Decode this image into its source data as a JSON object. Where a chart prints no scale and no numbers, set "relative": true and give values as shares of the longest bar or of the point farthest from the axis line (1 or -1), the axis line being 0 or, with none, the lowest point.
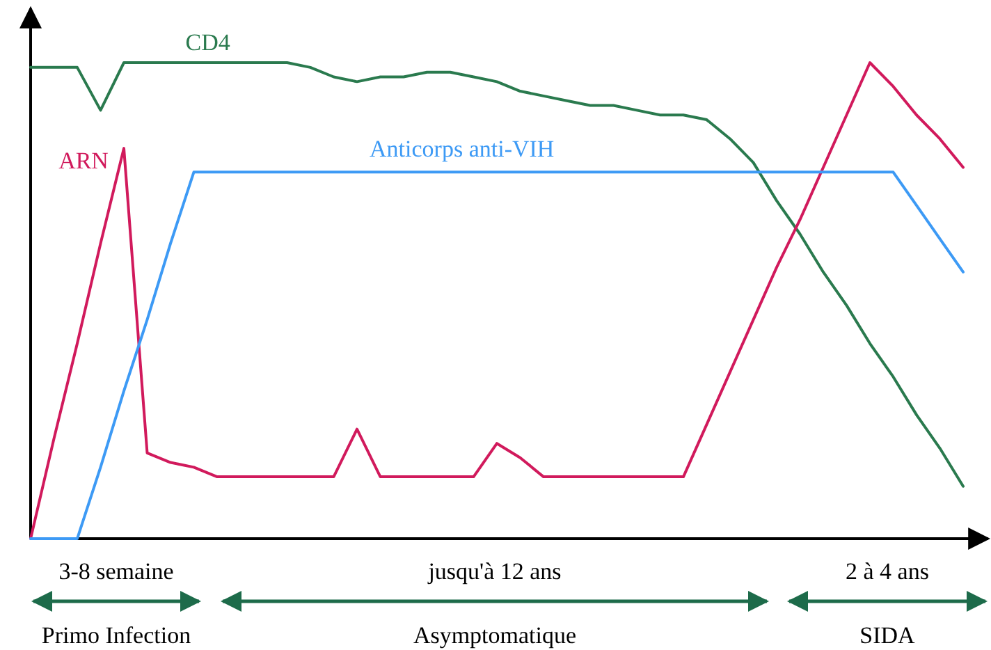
{
  "chart_data": {
    "type": "line",
    "relative": true,
    "categories": [
      null,
      null,
      null,
      null,
      null,
      null,
      null,
      null,
      null,
      null,
      null,
      null,
      null,
      null,
      null,
      null,
      null,
      null,
      null,
      null,
      null,
      null,
      null,
      null,
      null,
      null,
      null,
      null,
      null,
      null,
      null,
      null,
      null,
      null,
      null,
      null,
      null,
      null,
      null,
      null,
      null
    ],
    "series": [
      {
        "name": "CD4",
        "color": "#2a7a4e",
        "values": [
          0.99,
          0.99,
          0.99,
          0.9,
          1.0,
          1.0,
          1.0,
          1.0,
          1.0,
          1.0,
          1.0,
          1.0,
          0.99,
          0.97,
          0.96,
          0.97,
          0.97,
          0.98,
          0.98,
          0.97,
          0.96,
          0.94,
          0.93,
          0.92,
          0.91,
          0.91,
          0.9,
          0.89,
          0.89,
          0.88,
          0.84,
          0.79,
          0.71,
          0.64,
          0.56,
          0.49,
          0.41,
          0.34,
          0.26,
          0.19,
          0.11
        ]
      },
      {
        "name": "ARN",
        "color": "#d11a5c",
        "values": [
          0,
          0.21,
          0.41,
          0.62,
          0.82,
          0.18,
          0.16,
          0.15,
          0.13,
          0.13,
          0.13,
          0.13,
          0.13,
          0.13,
          0.23,
          0.13,
          0.13,
          0.13,
          0.13,
          0.13,
          0.2,
          0.17,
          0.13,
          0.13,
          0.13,
          0.13,
          0.13,
          0.13,
          0.13,
          0.24,
          0.35,
          0.46,
          0.57,
          0.67,
          0.78,
          0.89,
          1.0,
          0.95,
          0.89,
          0.84,
          0.78
        ]
      },
      {
        "name": "Anticorps anti-VIH",
        "color": "#3d9af5",
        "values": [
          0,
          0,
          0,
          0.15,
          0.31,
          0.46,
          0.62,
          0.77,
          0.77,
          0.77,
          0.77,
          0.77,
          0.77,
          0.77,
          0.77,
          0.77,
          0.77,
          0.77,
          0.77,
          0.77,
          0.77,
          0.77,
          0.77,
          0.77,
          0.77,
          0.77,
          0.77,
          0.77,
          0.77,
          0.77,
          0.77,
          0.77,
          0.77,
          0.77,
          0.77,
          0.77,
          0.77,
          0.77,
          0.7,
          0.63,
          0.56
        ]
      }
    ],
    "annotations": [
      "3-8 semaine",
      "Primo Infection",
      "jusqu'à 12 ans",
      "Asymptomatique",
      "2 à 4 ans",
      "SIDA"
    ]
  }
}
